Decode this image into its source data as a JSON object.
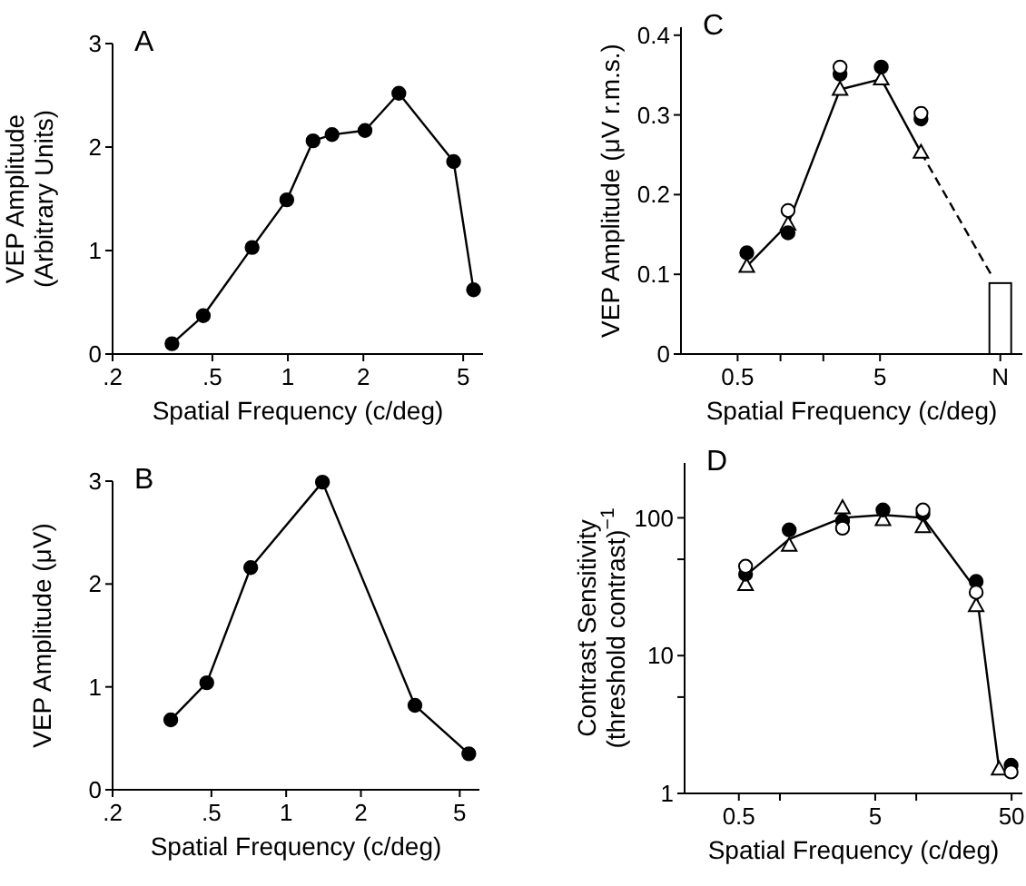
{
  "chart_data": [
    {
      "type": "line",
      "title": "A",
      "xlabel": "Spatial Frequency (c/deg)",
      "ylabel": "VEP Amplitude\n(Arbitrary Units)",
      "log": "x",
      "xlim": [
        0.2,
        6
      ],
      "ylim": [
        0,
        3
      ],
      "xticks": [
        {
          "value": 0.2,
          "label": ".2"
        },
        {
          "value": 0.5,
          "label": ".5"
        },
        1,
        2,
        5
      ],
      "yticks": [
        0,
        1,
        2,
        3
      ],
      "series": [
        {
          "color": "#000000",
          "marker": "circle",
          "x": [
            0.345,
            0.46,
            0.72,
            0.99,
            1.26,
            1.5,
            2.03,
            2.77,
            4.58,
            5.5
          ],
          "values": [
            0.1,
            0.37,
            1.03,
            1.49,
            2.06,
            2.12,
            2.16,
            2.52,
            1.86,
            0.62
          ]
        }
      ]
    },
    {
      "type": "scatter",
      "title": "C",
      "xlabel": "Spatial Frequency (c/deg)",
      "ylabel": "VEP Amplitude (μV r.m.s.)",
      "log": "x",
      "xlim": [
        0.2,
        50
      ],
      "ylim": [
        0,
        0.41
      ],
      "xticks": [
        0.5,
        {
          "value": 1,
          "label": null
        },
        {
          "value": 2,
          "label": null
        },
        5,
        {
          "value": 35,
          "label": "N"
        }
      ],
      "yticks": [
        0,
        0.1,
        0.2,
        0.3,
        0.4
      ],
      "series": [
        {
          "type": "bar",
          "color": "#ffffff",
          "x": [
            35
          ],
          "values": [
            0.089
          ]
        },
        {
          "type": "line",
          "color": "#000000",
          "line_style": "dashed",
          "x": [
            9.7,
            31
          ],
          "values": [
            0.253,
            0.096
          ]
        },
        {
          "type": "line",
          "color": "#ffffff",
          "marker": "triangle",
          "x": [
            0.58,
            1.13,
            2.62,
            5.1,
            9.7
          ],
          "values": [
            0.11,
            0.163,
            0.332,
            0.345,
            0.253
          ]
        },
        {
          "color": "#000000",
          "marker": "circle",
          "x": [
            0.58,
            1.13,
            2.62,
            5.1,
            9.7
          ],
          "values": [
            0.127,
            0.152,
            0.351,
            0.36,
            0.295
          ]
        },
        {
          "color": "#ffffff",
          "marker": "circle",
          "x": [
            1.13,
            2.62,
            9.7
          ],
          "values": [
            0.18,
            0.36,
            0.302
          ]
        }
      ]
    },
    {
      "type": "line",
      "title": "B",
      "xlabel": "Spatial Frequency (c/deg)",
      "ylabel": "VEP Amplitude (μV)",
      "log": "x",
      "xlim": [
        0.2,
        6
      ],
      "ylim": [
        0,
        3
      ],
      "xticks": [
        {
          "value": 0.2,
          "label": ".2"
        },
        {
          "value": 0.5,
          "label": ".5"
        },
        1,
        2,
        5
      ],
      "yticks": [
        0,
        1,
        2,
        3
      ],
      "series": [
        {
          "color": "#000000",
          "marker": "circle",
          "x": [
            0.343,
            0.479,
            0.72,
            1.4,
            3.3,
            5.44
          ],
          "values": [
            0.68,
            1.04,
            2.16,
            2.99,
            0.82,
            0.35
          ]
        }
      ]
    },
    {
      "type": "scatter",
      "title": "D",
      "xlabel": "Spatial Frequency (c/deg)",
      "ylabel": "Contrast Sensitivity\n(threshold contrast)$^{−1}$",
      "log": "xy",
      "xlim": [
        0.2,
        60
      ],
      "ylim": [
        1,
        250
      ],
      "xticks": [
        0.5,
        {
          "value": 1,
          "label": null
        },
        5,
        {
          "value": 10,
          "label": null
        },
        50
      ],
      "yticks": [
        1,
        {
          "value": 5,
          "label": null
        },
        10,
        {
          "value": 50,
          "label": null
        },
        100
      ],
      "series": [
        {
          "type": "line",
          "color": "#000000",
          "marker": "none",
          "x": [
            0.56,
            1.17,
            2.88,
            5.7,
            11.2,
            27.5,
            40.5
          ],
          "values": [
            38,
            70,
            100,
            105,
            100,
            30,
            1.5
          ]
        },
        {
          "color": "#ffffff",
          "marker": "triangle",
          "x": [
            0.56,
            1.17,
            2.88,
            5.7,
            11.2,
            27.5,
            40.5
          ],
          "values": [
            32.8,
            63,
            118,
            97,
            86,
            23,
            1.5
          ]
        },
        {
          "color": "#000000",
          "marker": "circle",
          "x": [
            0.56,
            1.17,
            2.88,
            5.7,
            11.2,
            27.5,
            49.6
          ],
          "values": [
            39,
            81.6,
            95,
            114,
            107,
            34.5,
            1.6
          ]
        },
        {
          "color": "#ffffff",
          "marker": "circle",
          "x": [
            0.56,
            2.88,
            11.2,
            27.5,
            49.6
          ],
          "values": [
            44.5,
            84,
            114,
            28.8,
            1.43
          ]
        }
      ]
    }
  ]
}
